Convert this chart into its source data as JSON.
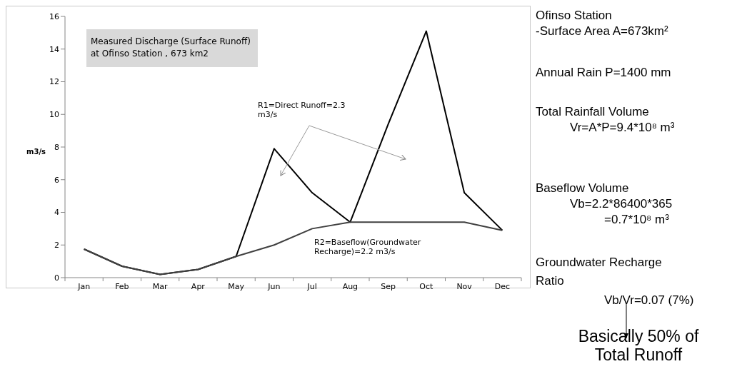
{
  "chart_data": {
    "type": "line",
    "title": "Measured Discharge (Surface Runoff)\nat Ofinso Station , 673 km2",
    "ylabel": "m3/s",
    "categories": [
      "Jan",
      "Feb",
      "Mar",
      "Apr",
      "May",
      "Jun",
      "Jul",
      "Aug",
      "Sep",
      "Oct",
      "Nov",
      "Dec"
    ],
    "series": [
      {
        "color": "#000000",
        "values": [
          1.75,
          0.7,
          0.2,
          0.5,
          1.3,
          7.9,
          5.2,
          3.4,
          9.4,
          15.1,
          5.2,
          2.9
        ]
      },
      {
        "color": "#404040",
        "values": [
          1.75,
          0.7,
          0.2,
          0.5,
          1.3,
          2.0,
          3.0,
          3.4,
          3.4,
          3.4,
          3.4,
          2.9
        ]
      }
    ],
    "ylim": [
      0,
      16
    ],
    "yticks": [
      0,
      2,
      4,
      6,
      8,
      10,
      12,
      14,
      16
    ],
    "grid": false,
    "legend": false,
    "marker": "none",
    "line_style": "solid",
    "annotations": [
      "R1=Direct Runoff=2.3 m3/s",
      "R2=Baseflow(Groundwater Recharge)=2.2 m3/s",
      "Ofinso Station",
      "-Surface Area   A=673km²",
      "Annual Rain P=1400 mm",
      "Total Rainfall Volume",
      "Vr=A*P=9.4*10⁸ m³",
      "Baseflow Volume",
      "Vb=2.2*86400*365",
      "=0.7*10⁸ m³",
      "Groundwater Recharge",
      "Ratio",
      "Vb/Vr=0.07 (7%)",
      "Basically 50% of\nTotal Runoff"
    ]
  }
}
